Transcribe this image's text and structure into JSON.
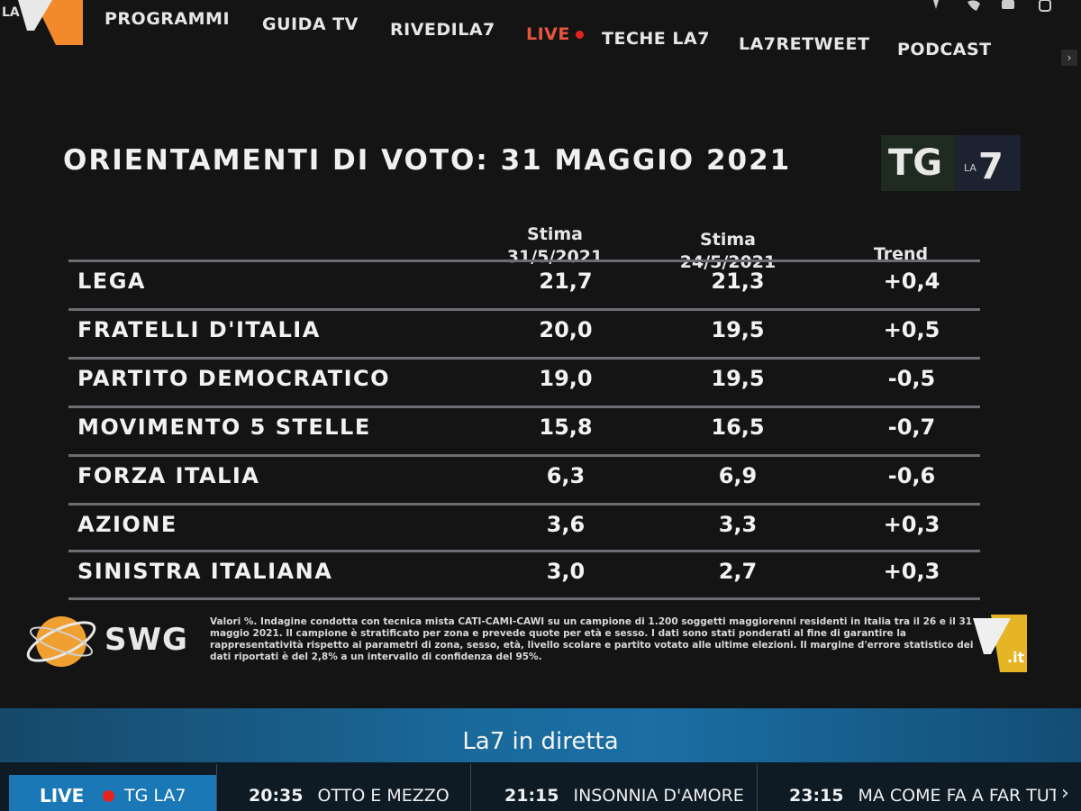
{
  "nav": {
    "items": [
      {
        "label": "PROGRAMMI"
      },
      {
        "label": "GUIDA TV"
      },
      {
        "label": "RIVEDILA7"
      },
      {
        "label": "LIVE"
      },
      {
        "label": "TECHE LA7"
      },
      {
        "label": "LA7RETWEET"
      },
      {
        "label": "PODCAST"
      }
    ]
  },
  "poll": {
    "title": "ORIENTAMENTI DI VOTO: 31 MAGGIO 2021",
    "columns": [
      {
        "line1": "Stima",
        "line2": "31/5/2021"
      },
      {
        "line1": "Stima",
        "line2": "24/5/2021"
      },
      {
        "line1": "Trend",
        "line2": ""
      }
    ],
    "rows": [
      {
        "party": "LEGA",
        "current": "21,7",
        "previous": "21,3",
        "trend": "+0,4"
      },
      {
        "party": "FRATELLI D'ITALIA",
        "current": "20,0",
        "previous": "19,5",
        "trend": "+0,5"
      },
      {
        "party": "PARTITO DEMOCRATICO",
        "current": "19,0",
        "previous": "19,5",
        "trend": "-0,5"
      },
      {
        "party": "MOVIMENTO 5 STELLE",
        "current": "15,8",
        "previous": "16,5",
        "trend": "-0,7"
      },
      {
        "party": "FORZA ITALIA",
        "current": "6,3",
        "previous": "6,9",
        "trend": "-0,6"
      },
      {
        "party": "AZIONE",
        "current": "3,6",
        "previous": "3,3",
        "trend": "+0,3"
      },
      {
        "party": "SINISTRA ITALIANA",
        "current": "3,0",
        "previous": "2,7",
        "trend": "+0,3"
      }
    ],
    "source": "SWG",
    "note": "Valori %. Indagine condotta con tecnica mista CATI-CAMI-CAWI su un campione di 1.200 soggetti maggiorenni residenti in Italia tra il 26 e il 31 maggio 2021. Il campione è stratificato per zona e prevede quote per età e sesso. I dati sono stati ponderati al fine di garantire la rappresentatività rispetto ai parametri di zona, sesso, età, livello scolare e partito votato alle ultime elezioni. Il margine d'errore statistico dei dati riportati è del 2,8% a un intervallo di confidenza del 95%.",
    "logo_text": "TG LA7",
    "la7it_text": ".it"
  },
  "live": {
    "banner_title": "La7 in diretta",
    "live_label": "LIVE",
    "live_show": "TG LA7",
    "schedule": [
      {
        "time": "20:35",
        "show": "OTTO E MEZZO"
      },
      {
        "time": "21:15",
        "show": "INSONNIA D'AMORE"
      },
      {
        "time": "23:15",
        "show": "MA COME FA A FAR TUTTO"
      }
    ]
  },
  "colors": {
    "accent_live": "#e8553c",
    "live_blue": "#1b78b6",
    "dot_red": "#e52421"
  }
}
